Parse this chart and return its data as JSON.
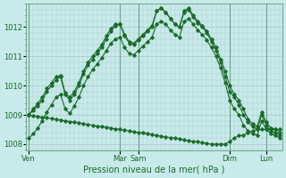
{
  "bg_color": "#c8eaea",
  "grid_color": "#aacccc",
  "line_color": "#1a6b2a",
  "vline_color": "#6aaa8a",
  "xlabel": "Pression niveau de la mer( hPa )",
  "ylim": [
    1007.8,
    1012.8
  ],
  "yticks": [
    1008,
    1009,
    1010,
    1011,
    1012
  ],
  "xtick_labels": [
    "Ven",
    "Mar",
    "Sam",
    "Dim",
    "Lun"
  ],
  "xtick_positions": [
    0,
    20,
    24,
    44,
    52
  ],
  "vline_positions": [
    0,
    20,
    24,
    44,
    52
  ],
  "series": [
    [
      1009.0,
      1009.15,
      1009.3,
      1009.5,
      1009.8,
      1010.0,
      1010.2,
      1010.3,
      1009.7,
      1009.5,
      1009.7,
      1010.0,
      1010.4,
      1010.7,
      1010.9,
      1011.1,
      1011.3,
      1011.6,
      1011.85,
      1012.05,
      1012.1,
      1011.7,
      1011.45,
      1011.4,
      1011.55,
      1011.7,
      1011.85,
      1012.0,
      1012.55,
      1012.65,
      1012.5,
      1012.3,
      1012.1,
      1012.0,
      1012.55,
      1012.65,
      1012.4,
      1012.2,
      1012.05,
      1011.85,
      1011.6,
      1011.3,
      1010.9,
      1010.5,
      1010.0,
      1009.7,
      1009.5,
      1009.2,
      1008.85,
      1008.7,
      1008.6,
      1009.1,
      1008.75,
      1008.55,
      1008.5,
      1008.4
    ],
    [
      1009.0,
      1009.2,
      1009.4,
      1009.6,
      1009.9,
      1010.1,
      1010.3,
      1010.35,
      1009.75,
      1009.6,
      1009.8,
      1010.1,
      1010.5,
      1010.8,
      1011.0,
      1011.2,
      1011.4,
      1011.7,
      1011.95,
      1012.1,
      1012.1,
      1011.75,
      1011.5,
      1011.45,
      1011.6,
      1011.75,
      1011.9,
      1012.05,
      1012.55,
      1012.65,
      1012.5,
      1012.3,
      1012.1,
      1012.0,
      1012.5,
      1012.6,
      1012.35,
      1012.15,
      1012.0,
      1011.8,
      1011.5,
      1011.2,
      1010.8,
      1010.3,
      1009.8,
      1009.6,
      1009.35,
      1009.0,
      1008.75,
      1008.6,
      1008.5,
      1009.0,
      1008.65,
      1008.45,
      1008.4,
      1008.3
    ],
    [
      1008.2,
      1008.35,
      1008.55,
      1008.8,
      1009.1,
      1009.35,
      1009.6,
      1009.7,
      1009.2,
      1009.05,
      1009.3,
      1009.6,
      1010.0,
      1010.3,
      1010.55,
      1010.75,
      1010.95,
      1011.2,
      1011.45,
      1011.6,
      1011.65,
      1011.3,
      1011.1,
      1011.05,
      1011.2,
      1011.35,
      1011.5,
      1011.65,
      1012.1,
      1012.2,
      1012.1,
      1011.9,
      1011.75,
      1011.65,
      1012.2,
      1012.3,
      1012.1,
      1011.9,
      1011.75,
      1011.55,
      1011.3,
      1011.0,
      1010.6,
      1010.1,
      1009.5,
      1009.2,
      1009.0,
      1008.65,
      1008.45,
      1008.35,
      1008.3,
      1008.8,
      1008.5,
      1008.35,
      1008.3,
      1008.2
    ],
    [
      1009.0,
      1008.97,
      1008.95,
      1008.92,
      1008.9,
      1008.87,
      1008.85,
      1008.82,
      1008.8,
      1008.77,
      1008.75,
      1008.72,
      1008.7,
      1008.67,
      1008.65,
      1008.62,
      1008.6,
      1008.57,
      1008.55,
      1008.52,
      1008.5,
      1008.47,
      1008.45,
      1008.42,
      1008.4,
      1008.38,
      1008.35,
      1008.32,
      1008.3,
      1008.27,
      1008.25,
      1008.22,
      1008.2,
      1008.18,
      1008.15,
      1008.12,
      1008.1,
      1008.08,
      1008.05,
      1008.02,
      1008.0,
      1008.0,
      1008.0,
      1008.0,
      1008.1,
      1008.2,
      1008.3,
      1008.3,
      1008.4,
      1008.45,
      1008.5,
      1008.5,
      1008.5,
      1008.5,
      1008.5,
      1008.5
    ]
  ]
}
